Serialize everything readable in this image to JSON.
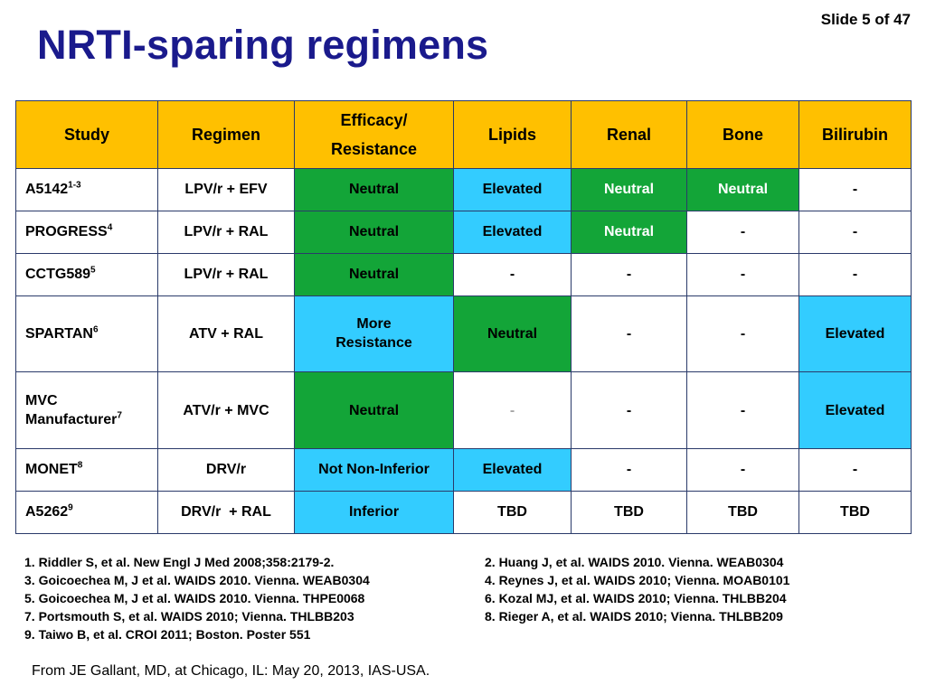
{
  "slide": {
    "number_label": "Slide 5 of 47",
    "title": "NRTI-sparing regimens"
  },
  "table": {
    "headers": [
      "Study",
      "Regimen",
      "Efficacy/ Resistance",
      "Lipids",
      "Renal",
      "Bone",
      "Bilirubin"
    ],
    "colors": {
      "header": "#ffc000",
      "green": "#13a538",
      "blue": "#33ccff",
      "white": "#ffffff",
      "grey_text": "#a6a6a6"
    },
    "rows": [
      {
        "study": "A5142",
        "ref": "1-3",
        "cells": [
          "LPV/r + EFV",
          "Neutral",
          "Elevated",
          "Neutral",
          "Neutral",
          "-"
        ]
      },
      {
        "study": "PROGRESS",
        "ref": "4",
        "cells": [
          "LPV/r + RAL",
          "Neutral",
          "Elevated",
          "Neutral",
          "-",
          "-"
        ]
      },
      {
        "study": "CCTG589",
        "ref": "5",
        "cells": [
          "LPV/r + RAL",
          "Neutral",
          "-",
          "-",
          "-",
          "-"
        ]
      },
      {
        "study": "SPARTAN",
        "ref": "6",
        "cells": [
          "ATV + RAL",
          "More Resistance",
          "Neutral",
          "-",
          "-",
          "Elevated"
        ]
      },
      {
        "study": "MVC Manufacturer",
        "ref": "7",
        "cells": [
          "ATV/r + MVC",
          "Neutral",
          "-",
          "-",
          "-",
          "Elevated"
        ]
      },
      {
        "study": "MONET",
        "ref": "8",
        "cells": [
          "DRV/r",
          "Not Non-Inferior",
          "Elevated",
          "-",
          "-",
          "-"
        ]
      },
      {
        "study": "A5262",
        "ref": "9",
        "cells": [
          "DRV/r  + RAL",
          "Inferior",
          "TBD",
          "TBD",
          "TBD",
          "TBD"
        ]
      }
    ]
  },
  "references": [
    "1. Riddler S, et al. New Engl J Med 2008;358:2179-2.",
    "2. Huang J, et al. WAIDS 2010. Vienna. WEAB0304",
    "3. Goicoechea M, J et al. WAIDS 2010. Vienna. WEAB0304",
    "4. Reynes J, et al. WAIDS 2010; Vienna. MOAB0101",
    "5. Goicoechea M, J et al. WAIDS 2010. Vienna. THPE0068",
    "6. Kozal  MJ, et al. WAIDS 2010; Vienna. THLBB204",
    "7. Portsmouth S, et al. WAIDS 2010; Vienna. THLBB203",
    "8. Rieger A, et al. WAIDS 2010; Vienna. THLBB209",
    "9. Taiwo B, et al. CROI 2011; Boston. Poster 551"
  ],
  "source": "From JE Gallant, MD, at Chicago, IL: May 20, 2013, IAS-USA."
}
